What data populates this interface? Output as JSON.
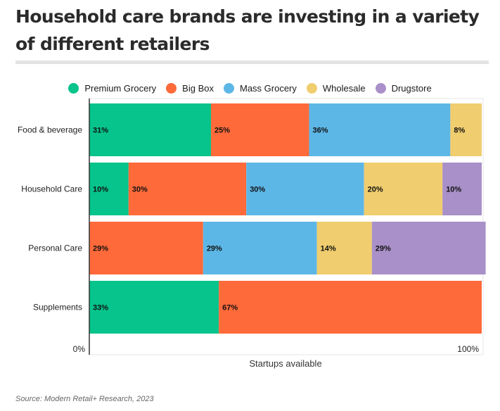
{
  "title": "Household care brands are investing in a variety of different retailers",
  "source": "Source: Modern Retail+ Research, 2023",
  "chart_data": {
    "type": "bar",
    "orientation": "horizontal",
    "stacked": true,
    "categories": [
      "Food & beverage",
      "Household Care",
      "Personal Care",
      "Supplements"
    ],
    "series": [
      {
        "name": "Premium Grocery",
        "color": "#06c48b",
        "values": [
          31,
          10,
          0,
          33
        ]
      },
      {
        "name": "Big Box",
        "color": "#ff6a3a",
        "values": [
          25,
          30,
          29,
          67
        ]
      },
      {
        "name": "Mass Grocery",
        "color": "#5db7e6",
        "values": [
          36,
          30,
          29,
          0
        ]
      },
      {
        "name": "Wholesale",
        "color": "#f0cd6e",
        "values": [
          8,
          20,
          14,
          0
        ]
      },
      {
        "name": "Drugstore",
        "color": "#a990c8",
        "values": [
          0,
          10,
          29,
          0
        ]
      }
    ],
    "xlabel": "Startups available",
    "x_tick_labels": [
      "0%",
      "100%"
    ],
    "xlim": [
      0,
      100
    ],
    "legend_position": "top"
  }
}
